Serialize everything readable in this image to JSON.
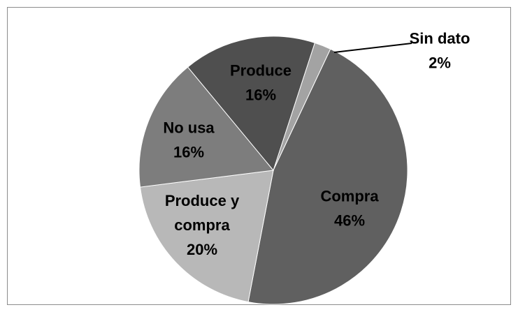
{
  "chart_data": {
    "type": "pie",
    "title": "",
    "slices": [
      {
        "label_lines": [
          "Sin dato",
          "2%"
        ],
        "value": 2,
        "color": "#a3a3a3",
        "label_color": "#000000"
      },
      {
        "label_lines": [
          "Compra",
          "46%"
        ],
        "value": 46,
        "color": "#606060",
        "label_color": "#000000"
      },
      {
        "label_lines": [
          "Produce y",
          "compra",
          "20%"
        ],
        "value": 20,
        "color": "#b8b8b8",
        "label_color": "#000000"
      },
      {
        "label_lines": [
          "No usa",
          "16%"
        ],
        "value": 16,
        "color": "#7d7d7d",
        "label_color": "#000000"
      },
      {
        "label_lines": [
          "Produce",
          "16%"
        ],
        "value": 16,
        "color": "#4f4f4f",
        "label_color": "#000000"
      }
    ],
    "start_angle_deg": 18,
    "direction": "clockwise",
    "legend": "none"
  }
}
